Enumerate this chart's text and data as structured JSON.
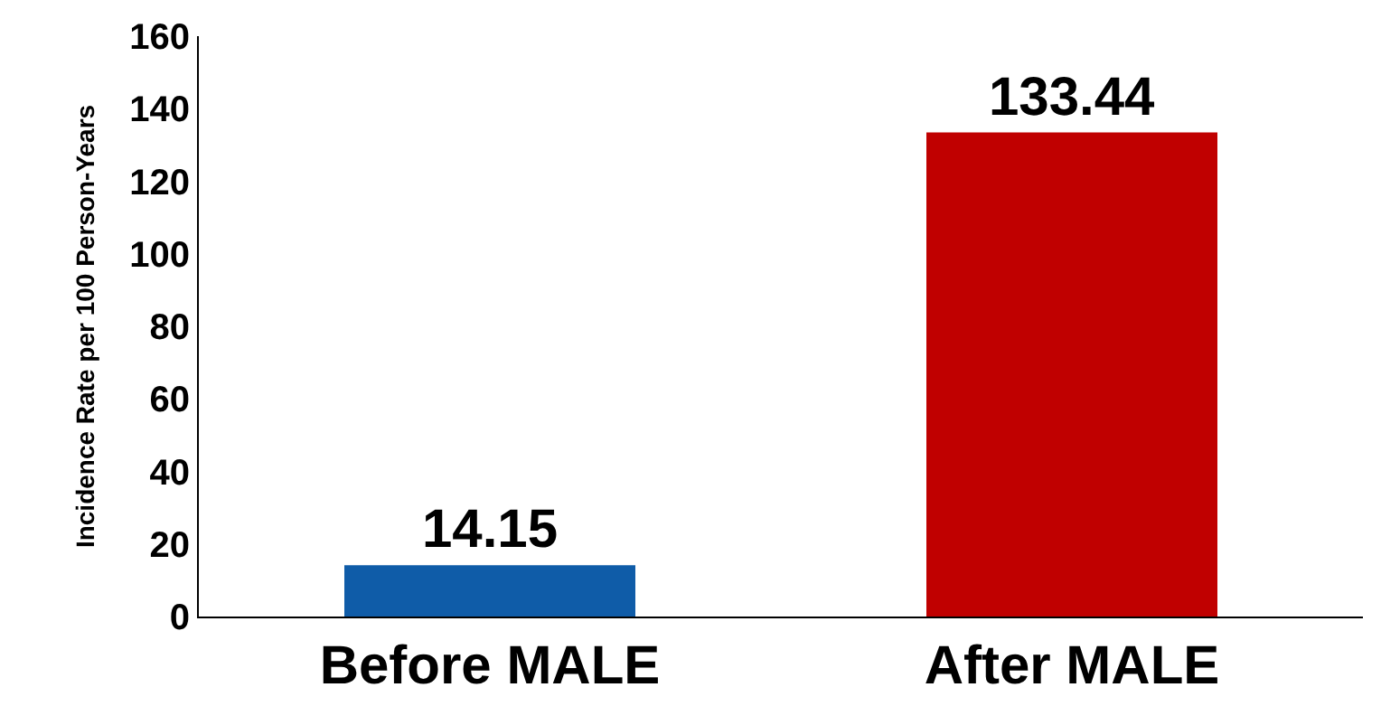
{
  "chart_data": {
    "type": "bar",
    "ylabel": "Incidence Rate per 100 Person-Years",
    "categories": [
      "Before MALE",
      "After MALE"
    ],
    "values": [
      14.15,
      133.44
    ],
    "colors": [
      "#0f5ca8",
      "#c00000"
    ],
    "ylim": [
      0,
      160
    ],
    "yticks": [
      0,
      20,
      40,
      60,
      80,
      100,
      120,
      140,
      160
    ],
    "data_labels": true
  }
}
